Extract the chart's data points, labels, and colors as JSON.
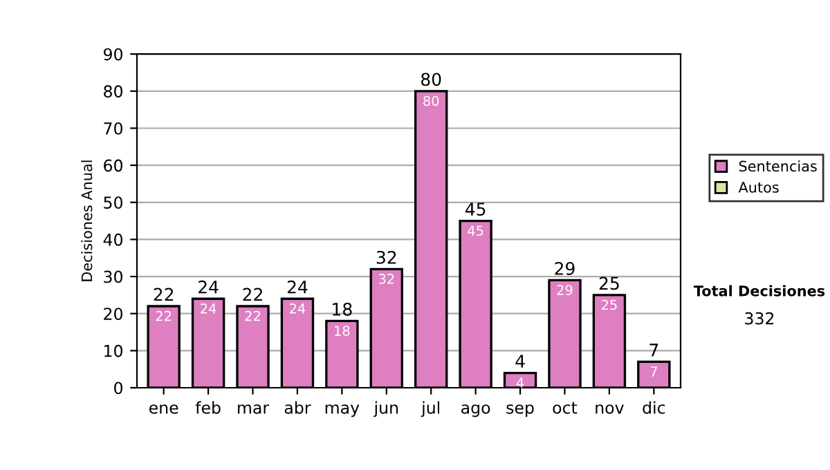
{
  "chart_data": {
    "type": "bar",
    "ylabel": "Decisiones Anual",
    "categories": [
      "ene",
      "feb",
      "mar",
      "abr",
      "may",
      "jun",
      "jul",
      "ago",
      "sep",
      "oct",
      "nov",
      "dic"
    ],
    "stacked": true,
    "series": [
      {
        "name": "Sentencias",
        "color": "#dd7fc0",
        "values": [
          22,
          24,
          22,
          24,
          18,
          32,
          80,
          45,
          4,
          29,
          25,
          7
        ],
        "value_labels": [
          "22",
          "24",
          "22",
          "24",
          "18",
          "32",
          "80",
          "45",
          "4",
          "29",
          "25",
          "7"
        ]
      },
      {
        "name": "Autos",
        "color": "#d8e8a0",
        "values": [
          0,
          0,
          0,
          0,
          0,
          0,
          0,
          0,
          0,
          0,
          0,
          0
        ]
      }
    ],
    "totals": [
      "22",
      "24",
      "22",
      "24",
      "18",
      "32",
      "80",
      "45",
      "4",
      "29",
      "25",
      "7"
    ],
    "ylim": [
      0,
      90
    ],
    "yticks": [
      0,
      10,
      20,
      30,
      40,
      50,
      60,
      70,
      80,
      90
    ],
    "grid": "y",
    "legend": "right",
    "annotations": [
      "Total Decisiones",
      "332"
    ]
  }
}
